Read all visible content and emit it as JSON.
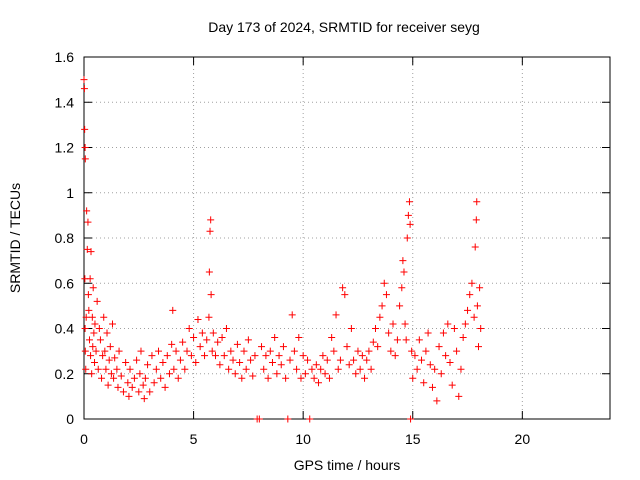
{
  "chart_data": {
    "type": "scatter",
    "title": "Day 173 of 2024, SRMTID for receiver seyg",
    "xlabel": "GPS time / hours",
    "ylabel": "SRMTID / TECUs",
    "xlim": [
      0,
      24
    ],
    "ylim": [
      0,
      1.6
    ],
    "xticks": [
      0,
      5,
      10,
      15,
      20
    ],
    "yticks": [
      0,
      0.2,
      0.4,
      0.6,
      0.8,
      1,
      1.2,
      1.4,
      1.6
    ],
    "xtick_labels": [
      "0",
      "5",
      "10",
      "15",
      "20"
    ],
    "ytick_labels": [
      "0",
      "0.2",
      "0.4",
      "0.6",
      "0.8",
      "1",
      "1.2",
      "1.4",
      "1.6"
    ],
    "grid": true,
    "marker": "+",
    "color": "#ff0000",
    "series": [
      {
        "name": "SRMTID",
        "points": [
          [
            0.0,
            1.5
          ],
          [
            0.02,
            1.46
          ],
          [
            0.03,
            1.28
          ],
          [
            0.05,
            1.2
          ],
          [
            0.06,
            1.15
          ],
          [
            0.04,
            0.62
          ],
          [
            0.05,
            0.4
          ],
          [
            0.06,
            0.3
          ],
          [
            0.08,
            0.22
          ],
          [
            0.1,
            0.45
          ],
          [
            0.12,
            0.92
          ],
          [
            0.15,
            0.75
          ],
          [
            0.18,
            0.87
          ],
          [
            0.2,
            0.55
          ],
          [
            0.22,
            0.48
          ],
          [
            0.25,
            0.35
          ],
          [
            0.28,
            0.62
          ],
          [
            0.3,
            0.28
          ],
          [
            0.32,
            0.74
          ],
          [
            0.35,
            0.2
          ],
          [
            0.38,
            0.45
          ],
          [
            0.4,
            0.32
          ],
          [
            0.42,
            0.58
          ],
          [
            0.45,
            0.38
          ],
          [
            0.48,
            0.25
          ],
          [
            0.5,
            0.42
          ],
          [
            0.55,
            0.3
          ],
          [
            0.6,
            0.52
          ],
          [
            0.65,
            0.22
          ],
          [
            0.7,
            0.4
          ],
          [
            0.75,
            0.35
          ],
          [
            0.8,
            0.18
          ],
          [
            0.85,
            0.28
          ],
          [
            0.9,
            0.45
          ],
          [
            0.95,
            0.3
          ],
          [
            1.0,
            0.22
          ],
          [
            1.05,
            0.38
          ],
          [
            1.1,
            0.15
          ],
          [
            1.15,
            0.26
          ],
          [
            1.2,
            0.32
          ],
          [
            1.25,
            0.2
          ],
          [
            1.3,
            0.42
          ],
          [
            1.35,
            0.18
          ],
          [
            1.4,
            0.27
          ],
          [
            1.5,
            0.22
          ],
          [
            1.55,
            0.14
          ],
          [
            1.6,
            0.3
          ],
          [
            1.7,
            0.19
          ],
          [
            1.8,
            0.12
          ],
          [
            1.9,
            0.25
          ],
          [
            2.0,
            0.16
          ],
          [
            2.05,
            0.1
          ],
          [
            2.1,
            0.22
          ],
          [
            2.2,
            0.14
          ],
          [
            2.3,
            0.18
          ],
          [
            2.4,
            0.26
          ],
          [
            2.5,
            0.12
          ],
          [
            2.55,
            0.2
          ],
          [
            2.6,
            0.3
          ],
          [
            2.7,
            0.15
          ],
          [
            2.75,
            0.09
          ],
          [
            2.8,
            0.18
          ],
          [
            2.9,
            0.24
          ],
          [
            3.0,
            0.12
          ],
          [
            3.1,
            0.28
          ],
          [
            3.2,
            0.16
          ],
          [
            3.3,
            0.22
          ],
          [
            3.4,
            0.3
          ],
          [
            3.5,
            0.18
          ],
          [
            3.6,
            0.25
          ],
          [
            3.7,
            0.14
          ],
          [
            3.8,
            0.28
          ],
          [
            3.9,
            0.2
          ],
          [
            4.0,
            0.33
          ],
          [
            4.05,
            0.48
          ],
          [
            4.1,
            0.22
          ],
          [
            4.2,
            0.3
          ],
          [
            4.3,
            0.18
          ],
          [
            4.4,
            0.26
          ],
          [
            4.5,
            0.34
          ],
          [
            4.6,
            0.22
          ],
          [
            4.7,
            0.3
          ],
          [
            4.8,
            0.4
          ],
          [
            4.9,
            0.28
          ],
          [
            5.0,
            0.36
          ],
          [
            5.1,
            0.25
          ],
          [
            5.2,
            0.44
          ],
          [
            5.3,
            0.32
          ],
          [
            5.4,
            0.38
          ],
          [
            5.5,
            0.28
          ],
          [
            5.6,
            0.35
          ],
          [
            5.7,
            0.45
          ],
          [
            5.72,
            0.65
          ],
          [
            5.75,
            0.83
          ],
          [
            5.78,
            0.88
          ],
          [
            5.8,
            0.55
          ],
          [
            5.85,
            0.3
          ],
          [
            5.9,
            0.38
          ],
          [
            6.0,
            0.28
          ],
          [
            6.1,
            0.34
          ],
          [
            6.2,
            0.24
          ],
          [
            6.3,
            0.36
          ],
          [
            6.4,
            0.28
          ],
          [
            6.5,
            0.4
          ],
          [
            6.6,
            0.22
          ],
          [
            6.7,
            0.3
          ],
          [
            6.8,
            0.26
          ],
          [
            6.9,
            0.2
          ],
          [
            7.0,
            0.33
          ],
          [
            7.1,
            0.25
          ],
          [
            7.2,
            0.18
          ],
          [
            7.3,
            0.3
          ],
          [
            7.4,
            0.22
          ],
          [
            7.5,
            0.35
          ],
          [
            7.6,
            0.26
          ],
          [
            7.7,
            0.19
          ],
          [
            7.8,
            0.28
          ],
          [
            7.9,
            0.0
          ],
          [
            8.0,
            0.0
          ],
          [
            8.1,
            0.32
          ],
          [
            8.2,
            0.22
          ],
          [
            8.3,
            0.28
          ],
          [
            8.4,
            0.18
          ],
          [
            8.5,
            0.3
          ],
          [
            8.6,
            0.25
          ],
          [
            8.7,
            0.36
          ],
          [
            8.8,
            0.2
          ],
          [
            8.9,
            0.28
          ],
          [
            9.0,
            0.24
          ],
          [
            9.1,
            0.32
          ],
          [
            9.2,
            0.18
          ],
          [
            9.3,
            0.0
          ],
          [
            9.4,
            0.26
          ],
          [
            9.5,
            0.46
          ],
          [
            9.6,
            0.3
          ],
          [
            9.7,
            0.22
          ],
          [
            9.8,
            0.36
          ],
          [
            9.9,
            0.18
          ],
          [
            10.0,
            0.28
          ],
          [
            10.1,
            0.2
          ],
          [
            10.2,
            0.26
          ],
          [
            10.3,
            0.0
          ],
          [
            10.4,
            0.22
          ],
          [
            10.5,
            0.18
          ],
          [
            10.6,
            0.24
          ],
          [
            10.7,
            0.16
          ],
          [
            10.8,
            0.22
          ],
          [
            10.9,
            0.28
          ],
          [
            11.0,
            0.2
          ],
          [
            11.1,
            0.26
          ],
          [
            11.2,
            0.18
          ],
          [
            11.3,
            0.36
          ],
          [
            11.4,
            0.3
          ],
          [
            11.5,
            0.46
          ],
          [
            11.6,
            0.22
          ],
          [
            11.7,
            0.26
          ],
          [
            11.8,
            0.58
          ],
          [
            11.9,
            0.55
          ],
          [
            12.0,
            0.32
          ],
          [
            12.1,
            0.24
          ],
          [
            12.2,
            0.4
          ],
          [
            12.3,
            0.26
          ],
          [
            12.4,
            0.2
          ],
          [
            12.5,
            0.3
          ],
          [
            12.6,
            0.22
          ],
          [
            12.7,
            0.28
          ],
          [
            12.8,
            0.18
          ],
          [
            12.9,
            0.26
          ],
          [
            13.0,
            0.3
          ],
          [
            13.1,
            0.22
          ],
          [
            13.2,
            0.34
          ],
          [
            13.3,
            0.4
          ],
          [
            13.4,
            0.32
          ],
          [
            13.5,
            0.45
          ],
          [
            13.6,
            0.5
          ],
          [
            13.7,
            0.6
          ],
          [
            13.8,
            0.55
          ],
          [
            13.9,
            0.38
          ],
          [
            14.0,
            0.3
          ],
          [
            14.1,
            0.42
          ],
          [
            14.2,
            0.28
          ],
          [
            14.3,
            0.35
          ],
          [
            14.4,
            0.5
          ],
          [
            14.5,
            0.58
          ],
          [
            14.55,
            0.7
          ],
          [
            14.6,
            0.65
          ],
          [
            14.65,
            0.42
          ],
          [
            14.7,
            0.35
          ],
          [
            14.75,
            0.8
          ],
          [
            14.8,
            0.9
          ],
          [
            14.85,
            0.96
          ],
          [
            14.88,
            0.86
          ],
          [
            14.9,
            0.0
          ],
          [
            14.95,
            0.3
          ],
          [
            15.0,
            0.18
          ],
          [
            15.1,
            0.28
          ],
          [
            15.2,
            0.22
          ],
          [
            15.3,
            0.35
          ],
          [
            15.4,
            0.26
          ],
          [
            15.5,
            0.16
          ],
          [
            15.6,
            0.3
          ],
          [
            15.7,
            0.38
          ],
          [
            15.8,
            0.24
          ],
          [
            15.9,
            0.14
          ],
          [
            16.0,
            0.22
          ],
          [
            16.1,
            0.08
          ],
          [
            16.2,
            0.32
          ],
          [
            16.3,
            0.2
          ],
          [
            16.4,
            0.38
          ],
          [
            16.5,
            0.28
          ],
          [
            16.6,
            0.42
          ],
          [
            16.7,
            0.25
          ],
          [
            16.8,
            0.15
          ],
          [
            16.9,
            0.4
          ],
          [
            17.0,
            0.3
          ],
          [
            17.1,
            0.1
          ],
          [
            17.2,
            0.22
          ],
          [
            17.3,
            0.36
          ],
          [
            17.4,
            0.42
          ],
          [
            17.5,
            0.48
          ],
          [
            17.6,
            0.55
          ],
          [
            17.7,
            0.6
          ],
          [
            17.8,
            0.45
          ],
          [
            17.85,
            0.76
          ],
          [
            17.9,
            0.88
          ],
          [
            17.92,
            0.96
          ],
          [
            17.95,
            0.5
          ],
          [
            18.0,
            0.32
          ],
          [
            18.05,
            0.58
          ],
          [
            18.1,
            0.4
          ]
        ]
      }
    ]
  }
}
